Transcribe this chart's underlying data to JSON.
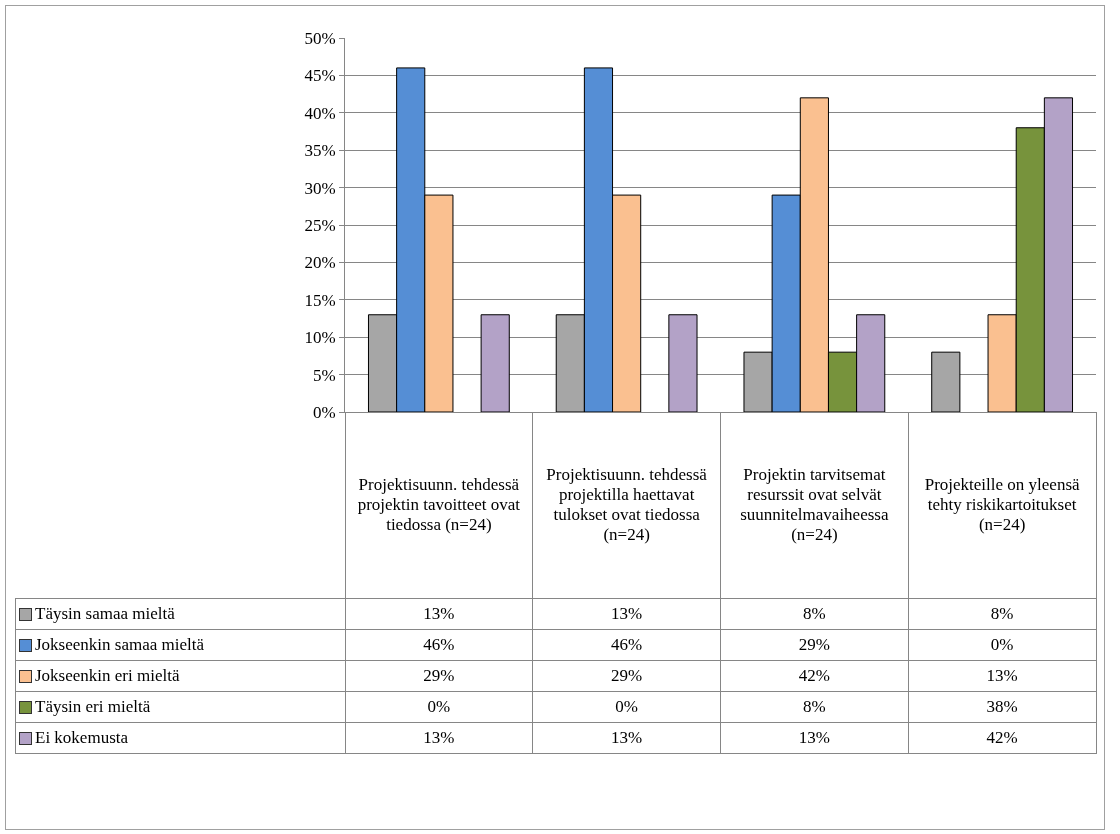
{
  "chart_data": {
    "type": "bar",
    "categories": [
      "Projektisuunn. tehdessä projektin tavoitteet ovat tiedossa (n=24)",
      "Projektisuunn. tehdessä projektilla haettavat tulokset ovat tiedossa (n=24)",
      "Projektin tarvitsemat resurssit ovat selvät suunnitelmavaiheessa (n=24)",
      "Projekteille on yleensä tehty riskikartoitukset (n=24)"
    ],
    "series": [
      {
        "name": "Täysin samaa mieltä",
        "color": "#a6a6a6",
        "values": [
          13,
          13,
          8,
          8
        ],
        "value_labels": [
          "13%",
          "13%",
          "8%",
          "8%"
        ]
      },
      {
        "name": "Jokseenkin samaa mieltä",
        "color": "#558ed5",
        "values": [
          46,
          46,
          29,
          0
        ],
        "value_labels": [
          "46%",
          "46%",
          "29%",
          "0%"
        ]
      },
      {
        "name": "Jokseenkin eri mieltä",
        "color": "#fac090",
        "values": [
          29,
          29,
          42,
          13
        ],
        "value_labels": [
          "29%",
          "29%",
          "42%",
          "13%"
        ]
      },
      {
        "name": "Täysin eri mieltä",
        "color": "#77933c",
        "values": [
          0,
          0,
          8,
          38
        ],
        "value_labels": [
          "0%",
          "0%",
          "8%",
          "38%"
        ]
      },
      {
        "name": "Ei kokemusta",
        "color": "#b3a2c7",
        "values": [
          13,
          13,
          13,
          42
        ],
        "value_labels": [
          "13%",
          "13%",
          "13%",
          "42%"
        ]
      }
    ],
    "ylim": [
      0,
      50
    ],
    "yticks": [
      {
        "value": 0,
        "label": "0%"
      },
      {
        "value": 5,
        "label": "5%"
      },
      {
        "value": 10,
        "label": "10%"
      },
      {
        "value": 15,
        "label": "15%"
      },
      {
        "value": 20,
        "label": "20%"
      },
      {
        "value": 25,
        "label": "25%"
      },
      {
        "value": 30,
        "label": "30%"
      },
      {
        "value": 35,
        "label": "35%"
      },
      {
        "value": 40,
        "label": "40%"
      },
      {
        "value": 45,
        "label": "45%"
      },
      {
        "value": 50,
        "label": "50%"
      }
    ],
    "grid": "y",
    "legend": "bottom",
    "tick_labels": "y"
  }
}
